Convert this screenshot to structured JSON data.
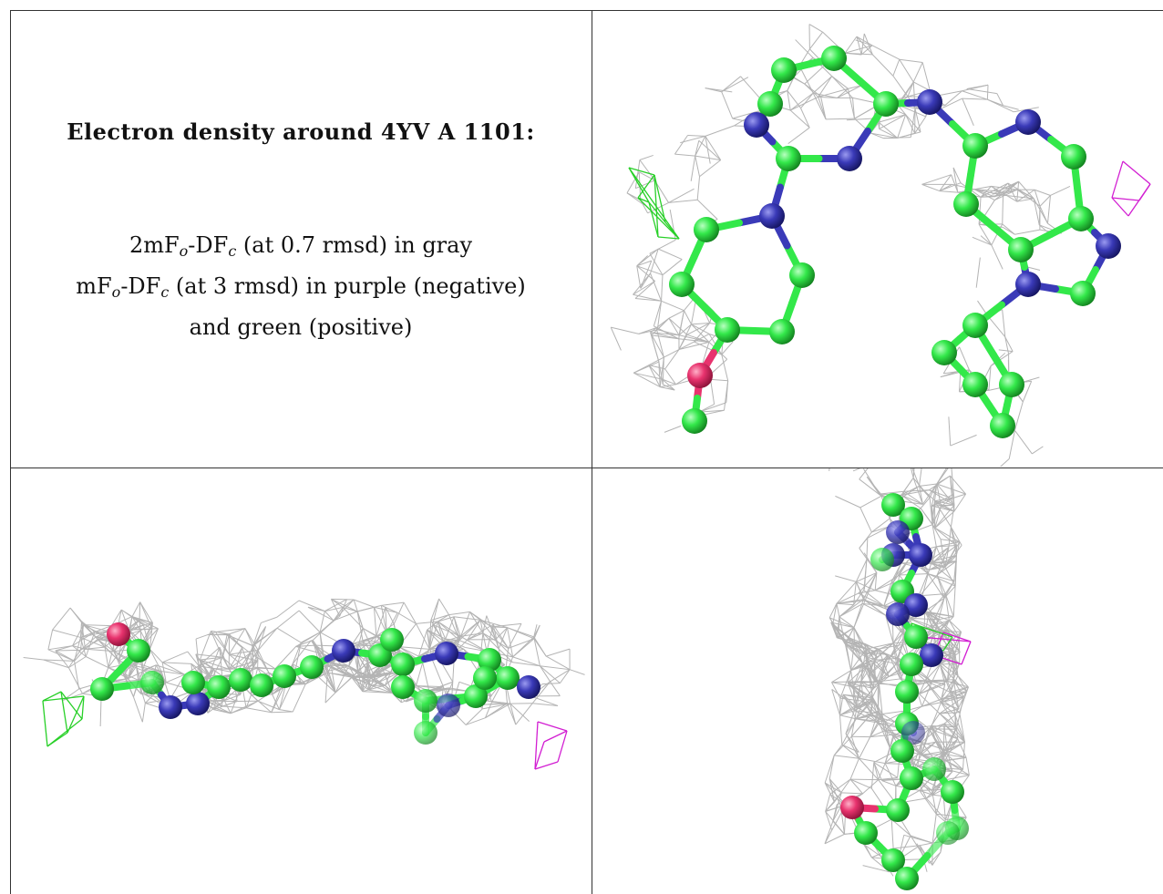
{
  "title": "Electron density around 4YV A 1101:",
  "legend": {
    "line1_prefix": "2mF",
    "line1_sub_o": "o",
    "line1_mid": "-DF",
    "line1_sub_c": "c",
    "line1_suffix": " (at 0.7 rmsd) in gray",
    "line2_prefix": "mF",
    "line2_sub_o": "o",
    "line2_mid": "-DF",
    "line2_sub_c": "c",
    "line2_suffix": " (at 3 rmsd) in purple (negative)",
    "line3": "and green (positive)"
  },
  "colors": {
    "carbon": "#33e84a",
    "nitrogen": "#3a3ab8",
    "oxygen": "#e8336e",
    "mesh_gray": "#b4b4b4",
    "mesh_negative": "#d21ed2",
    "mesh_positive": "#28d028"
  }
}
